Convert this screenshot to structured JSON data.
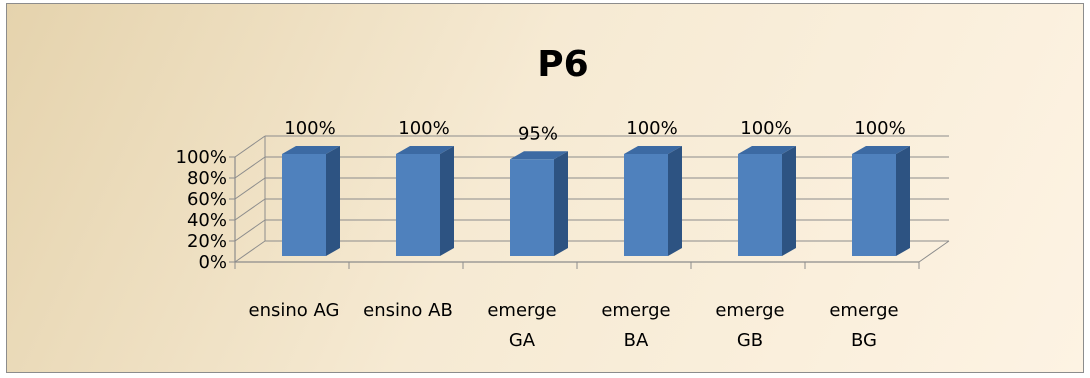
{
  "chart_data": {
    "type": "bar",
    "title": "P6",
    "categories": [
      [
        "ensino AG"
      ],
      [
        "ensino AB"
      ],
      [
        "emerge",
        "GA"
      ],
      [
        "emerge",
        "BA"
      ],
      [
        "emerge",
        "GB"
      ],
      [
        "emerge",
        "BG"
      ]
    ],
    "values": [
      100,
      100,
      95,
      100,
      100,
      100
    ],
    "data_labels": [
      "100%",
      "100%",
      "95%",
      "100%",
      "100%",
      "100%"
    ],
    "y_ticks": [
      "0%",
      "20%",
      "40%",
      "60%",
      "80%",
      "100%"
    ],
    "ylim": [
      0,
      100
    ],
    "grid": true,
    "legend": "none",
    "colors": {
      "bar_front": "#4f81bd",
      "bar_side": "#2d5382",
      "bar_top": "#3c6aa3",
      "grid": "#8c8c8c"
    }
  }
}
